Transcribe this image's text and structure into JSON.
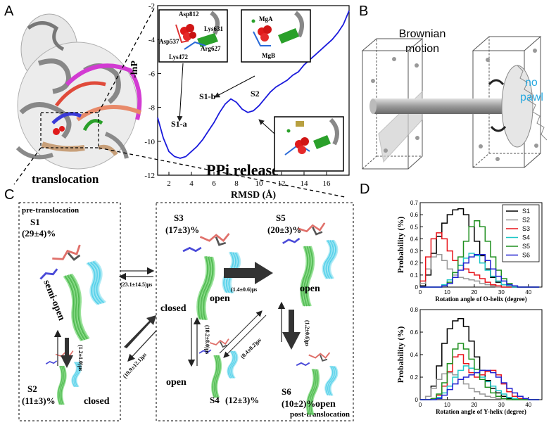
{
  "panel_a": {
    "letter": "A",
    "caption": "translocation",
    "plot_label": "PPi release",
    "states": [
      "S1-a",
      "S1-b",
      "S2"
    ],
    "residues": [
      "Asp812",
      "Lys631",
      "Asp537",
      "Arg627",
      "Lys472"
    ],
    "ions": [
      "MgA",
      "MgB"
    ]
  },
  "panel_b": {
    "letter": "B",
    "title_line1": "Brownian",
    "title_line2": "motion",
    "pawl_line1": "no",
    "pawl_line2": "pawl"
  },
  "panel_c": {
    "letter": "C",
    "pre_label": "pre-translocation",
    "post_label": "post-translocation",
    "states": [
      {
        "id": "S1",
        "pct": "(29±4)%",
        "conf": "semi-open"
      },
      {
        "id": "S2",
        "pct": "(11±3)%",
        "conf": "closed"
      },
      {
        "id": "S3",
        "pct": "(17±3)%",
        "conf": "open",
        "conf2": "closed"
      },
      {
        "id": "S4",
        "pct": "(12±3)%",
        "conf": "open"
      },
      {
        "id": "S5",
        "pct": "(20±3)%",
        "conf": "open"
      },
      {
        "id": "S6",
        "pct": "(10±2)%",
        "conf": "open"
      }
    ],
    "rates": {
      "s1_s2": "(1.2±1.0)μs",
      "s1_s3": "(23.1±14.5)μs",
      "s2_s3": "(19.9±12.1)μs",
      "s3_s5": "(1.4±0.6)μs",
      "s3_s4": "(18.2±8.0)μs",
      "s4_s5": "(0.4±0.2)μs",
      "s5_s6": "(1.2±0.6)μs"
    }
  },
  "panel_d": {
    "letter": "D",
    "legend": [
      "S1",
      "S2",
      "S3",
      "S4",
      "S5",
      "S6"
    ],
    "colors": {
      "S1": "#000000",
      "S2": "#999999",
      "S3": "#e8141b",
      "S4": "#1fc7c7",
      "S5": "#1f8f1f",
      "S6": "#2020d0"
    }
  },
  "chart_data": [
    {
      "type": "line",
      "title": "",
      "xlabel": "RMSD (Å)",
      "ylabel": "-lnP",
      "xlim": [
        1,
        18
      ],
      "ylim": [
        -12,
        -2
      ],
      "xticks": [
        "2",
        "4",
        "6",
        "8",
        "10",
        "12",
        "14",
        "16"
      ],
      "yticks": [
        "-2",
        "-4",
        "-6",
        "-8",
        "-10",
        "-12"
      ],
      "series": [
        {
          "x": [
            1.0,
            1.5,
            2.0,
            2.5,
            3.0,
            3.5,
            4.0,
            4.5,
            5.0,
            5.5,
            6.0,
            6.5,
            7.0,
            7.5,
            8.0,
            8.5,
            9.0,
            9.5,
            10.0,
            10.5,
            11.0,
            11.5,
            12.0,
            12.5,
            13.0,
            13.5,
            14.0,
            14.5,
            15.0,
            15.5,
            16.0,
            16.5,
            17.0,
            17.5,
            18.0
          ],
          "y": [
            -8.6,
            -9.8,
            -10.6,
            -10.9,
            -11.0,
            -10.9,
            -10.6,
            -10.3,
            -9.9,
            -9.4,
            -8.9,
            -8.3,
            -7.8,
            -7.5,
            -7.7,
            -8.1,
            -8.3,
            -8.2,
            -7.9,
            -7.5,
            -7.1,
            -6.8,
            -6.6,
            -6.4,
            -6.1,
            -5.9,
            -5.5,
            -5.2,
            -4.9,
            -4.6,
            -4.3,
            -4.0,
            -3.6,
            -3.1,
            -2.3
          ]
        }
      ]
    },
    {
      "type": "line",
      "title": "",
      "xlabel": "Rotation angle of O-helix (degree)",
      "ylabel": "Probability (%)",
      "xlim": [
        0,
        45
      ],
      "ylim": [
        0,
        0.7
      ],
      "xticks": [
        "0",
        "10",
        "20",
        "30",
        "40"
      ],
      "yticks": [
        "0",
        "0.1",
        "0.2",
        "0.3",
        "0.4",
        "0.5",
        "0.6",
        "0.7"
      ],
      "x": [
        0,
        2,
        4,
        6,
        8,
        10,
        12,
        14,
        16,
        18,
        20,
        22,
        24,
        26,
        28,
        30,
        32,
        34,
        36,
        38,
        40,
        42
      ],
      "series": [
        {
          "name": "S1",
          "values": [
            0.01,
            0.1,
            0.28,
            0.42,
            0.53,
            0.6,
            0.64,
            0.65,
            0.6,
            0.5,
            0.38,
            0.26,
            0.15,
            0.08,
            0.04,
            0.02,
            0.01,
            0.0,
            0.0,
            0.0,
            0.0,
            0.0
          ]
        },
        {
          "name": "S2",
          "values": [
            0.03,
            0.15,
            0.25,
            0.27,
            0.22,
            0.15,
            0.1,
            0.08,
            0.07,
            0.06,
            0.05,
            0.03,
            0.02,
            0.01,
            0.0,
            0.0,
            0.0,
            0.0,
            0.0,
            0.0,
            0.0,
            0.0
          ]
        },
        {
          "name": "S3",
          "values": [
            0.05,
            0.25,
            0.4,
            0.45,
            0.4,
            0.3,
            0.22,
            0.18,
            0.15,
            0.12,
            0.1,
            0.07,
            0.04,
            0.02,
            0.01,
            0.0,
            0.0,
            0.0,
            0.0,
            0.0,
            0.0,
            0.0
          ]
        },
        {
          "name": "S4",
          "values": [
            0.0,
            0.0,
            0.0,
            0.0,
            0.02,
            0.06,
            0.12,
            0.18,
            0.24,
            0.28,
            0.26,
            0.2,
            0.14,
            0.09,
            0.05,
            0.02,
            0.01,
            0.0,
            0.0,
            0.0,
            0.0,
            0.0
          ]
        },
        {
          "name": "S5",
          "values": [
            0.0,
            0.0,
            0.0,
            0.0,
            0.01,
            0.04,
            0.12,
            0.25,
            0.38,
            0.5,
            0.55,
            0.5,
            0.38,
            0.25,
            0.14,
            0.07,
            0.03,
            0.01,
            0.0,
            0.0,
            0.0,
            0.0
          ]
        },
        {
          "name": "S6",
          "values": [
            0.0,
            0.0,
            0.0,
            0.0,
            0.01,
            0.03,
            0.08,
            0.14,
            0.2,
            0.25,
            0.27,
            0.27,
            0.22,
            0.15,
            0.09,
            0.05,
            0.02,
            0.01,
            0.0,
            0.0,
            0.0,
            0.0
          ]
        }
      ],
      "legend_placement": "top-right"
    },
    {
      "type": "line",
      "title": "",
      "xlabel": "Rotation angle of Y-helix (degree)",
      "ylabel": "Probability (%)",
      "xlim": [
        0,
        45
      ],
      "ylim": [
        0,
        0.8
      ],
      "xticks": [
        "0",
        "10",
        "20",
        "30",
        "40"
      ],
      "yticks": [
        "0",
        "0.2",
        "0.4",
        "0.6",
        "0.8"
      ],
      "x": [
        0,
        2,
        4,
        6,
        8,
        10,
        12,
        14,
        16,
        18,
        20,
        22,
        24,
        26,
        28,
        30,
        32,
        34,
        36,
        38,
        40,
        42
      ],
      "series": [
        {
          "name": "S1",
          "values": [
            0.0,
            0.03,
            0.12,
            0.3,
            0.5,
            0.63,
            0.7,
            0.72,
            0.65,
            0.52,
            0.38,
            0.26,
            0.17,
            0.1,
            0.06,
            0.03,
            0.01,
            0.0,
            0.0,
            0.0,
            0.0,
            0.0
          ]
        },
        {
          "name": "S2",
          "values": [
            0.0,
            0.03,
            0.1,
            0.18,
            0.23,
            0.24,
            0.22,
            0.18,
            0.14,
            0.1,
            0.07,
            0.05,
            0.03,
            0.02,
            0.01,
            0.0,
            0.0,
            0.0,
            0.0,
            0.0,
            0.0,
            0.0
          ]
        },
        {
          "name": "S3",
          "values": [
            0.0,
            0.0,
            0.01,
            0.04,
            0.12,
            0.25,
            0.38,
            0.4,
            0.32,
            0.24,
            0.2,
            0.22,
            0.25,
            0.26,
            0.22,
            0.14,
            0.07,
            0.03,
            0.01,
            0.0,
            0.0,
            0.0
          ]
        },
        {
          "name": "S4",
          "values": [
            0.0,
            0.0,
            0.0,
            0.02,
            0.06,
            0.12,
            0.2,
            0.26,
            0.3,
            0.28,
            0.24,
            0.2,
            0.16,
            0.12,
            0.08,
            0.05,
            0.02,
            0.01,
            0.0,
            0.0,
            0.0,
            0.0
          ]
        },
        {
          "name": "S5",
          "values": [
            0.0,
            0.0,
            0.01,
            0.05,
            0.15,
            0.32,
            0.45,
            0.5,
            0.45,
            0.36,
            0.27,
            0.18,
            0.11,
            0.06,
            0.03,
            0.01,
            0.0,
            0.0,
            0.0,
            0.0,
            0.0,
            0.0
          ]
        },
        {
          "name": "S6",
          "values": [
            0.0,
            0.0,
            0.0,
            0.01,
            0.04,
            0.09,
            0.14,
            0.18,
            0.2,
            0.22,
            0.24,
            0.26,
            0.26,
            0.24,
            0.2,
            0.15,
            0.1,
            0.06,
            0.03,
            0.01,
            0.0,
            0.0
          ]
        }
      ]
    }
  ]
}
